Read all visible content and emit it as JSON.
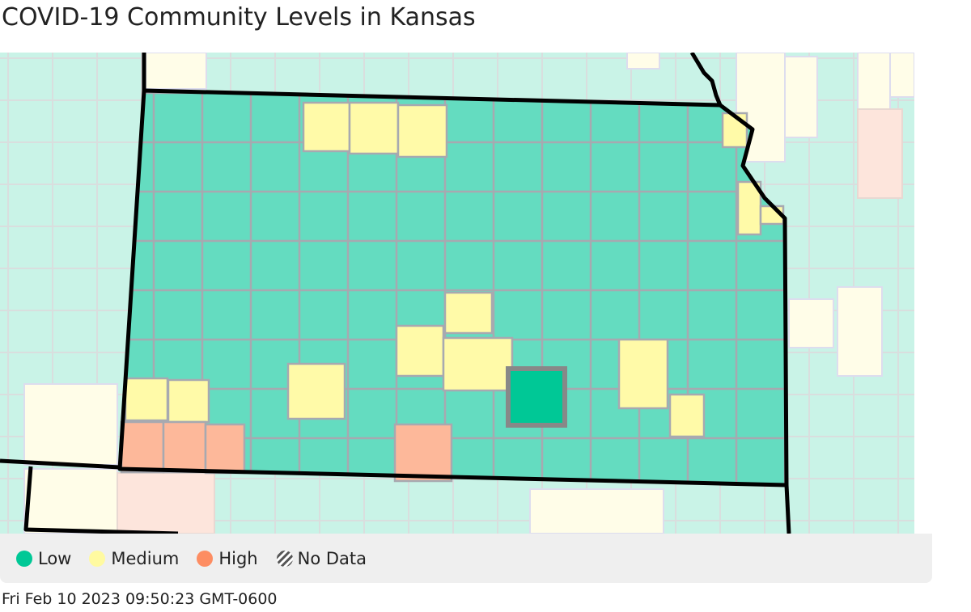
{
  "header": {
    "title": "COVID-19 Community Levels in Kansas"
  },
  "legend": {
    "items": [
      "Low",
      "Medium",
      "High",
      "No Data"
    ]
  },
  "footer": {
    "timestamp": "Fri Feb 10 2023 09:50:23 GMT-0600"
  }
}
